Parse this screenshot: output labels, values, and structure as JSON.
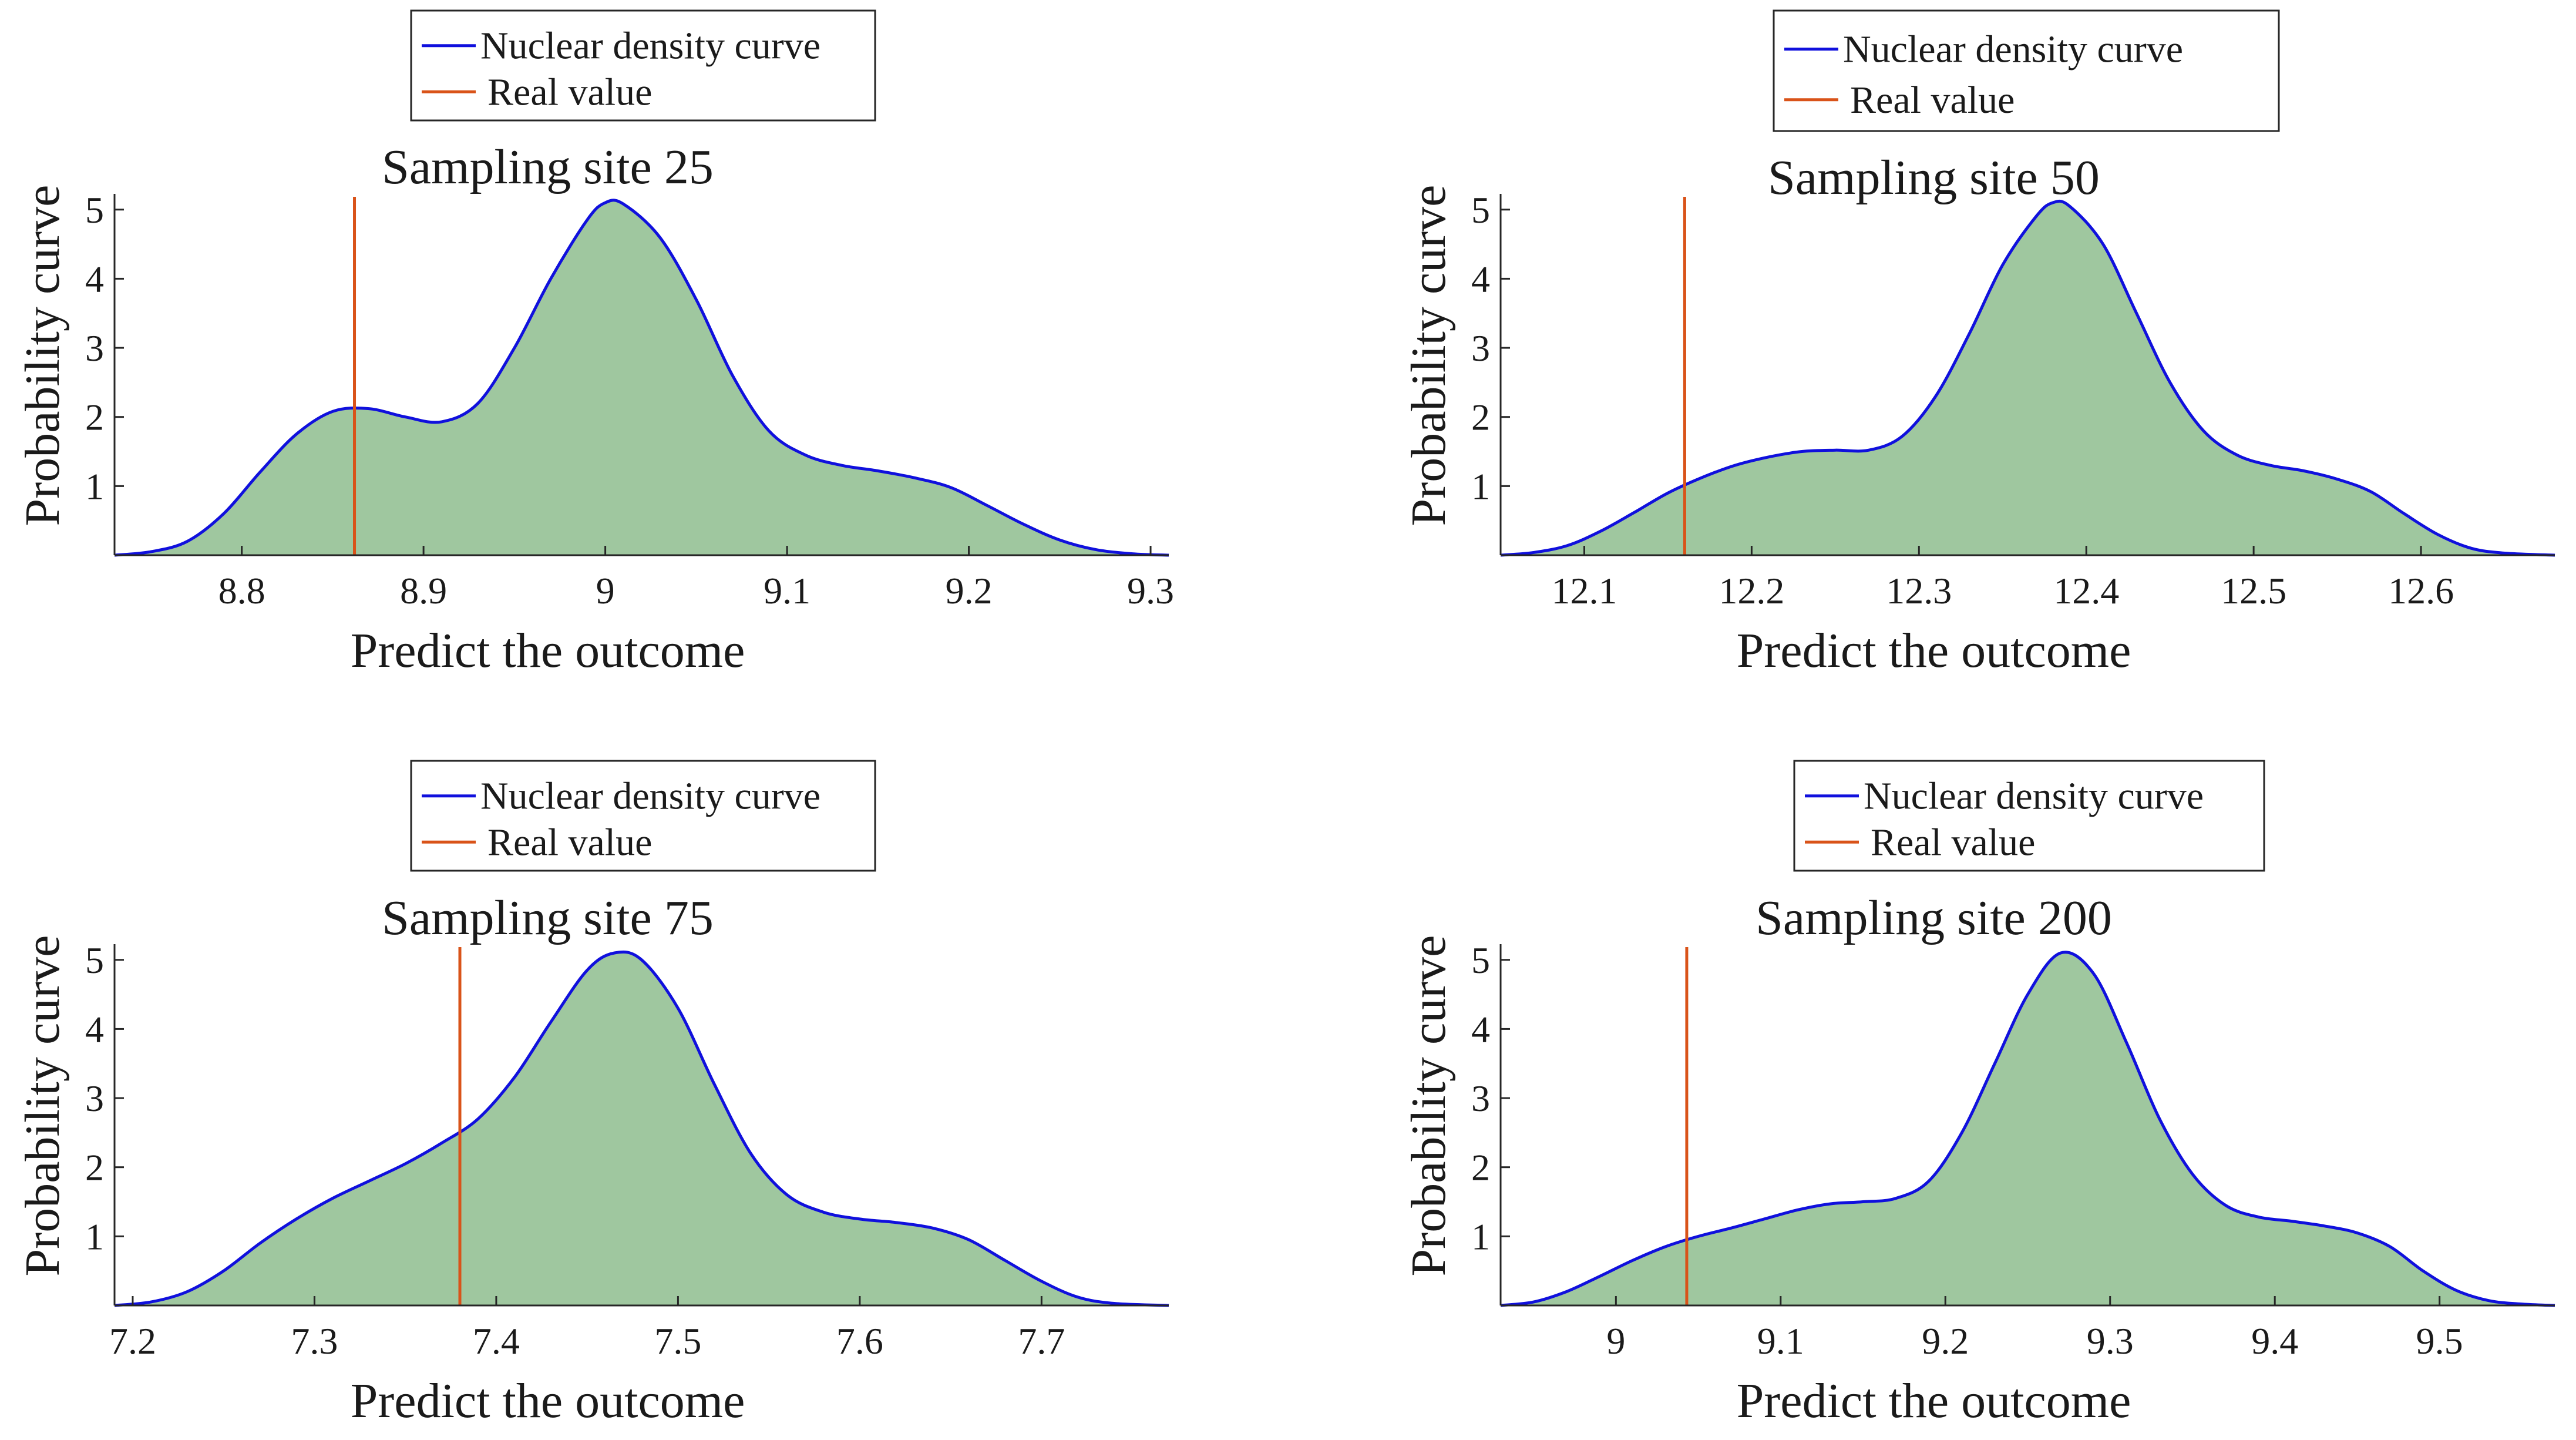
{
  "colors": {
    "density_line": "#1010dd",
    "density_fill": "#9fc79f",
    "real_value": "#d95319",
    "axis": "#262626",
    "legend_border": "#262626"
  },
  "chart_data": [
    {
      "type": "area",
      "title": "Sampling site 25",
      "xlabel": "Predict the outcome",
      "ylabel": "Probability curve",
      "xlim": [
        8.73,
        9.31
      ],
      "ylim": [
        0,
        5.1
      ],
      "xticks": [
        "8.8",
        "8.9",
        "9",
        "9.1",
        "9.2",
        "9.3"
      ],
      "yticks": [
        "1",
        "2",
        "3",
        "4",
        "5"
      ],
      "legend": [
        "Nuclear density curve",
        "Real value"
      ],
      "real_value": 8.862,
      "series": [
        {
          "name": "Nuclear density curve",
          "x": [
            8.73,
            8.75,
            8.77,
            8.79,
            8.81,
            8.83,
            8.85,
            8.87,
            8.89,
            8.91,
            8.93,
            8.95,
            8.97,
            8.99,
            9.0,
            9.01,
            9.03,
            9.05,
            9.07,
            9.09,
            9.11,
            9.13,
            9.15,
            9.17,
            9.19,
            9.21,
            9.23,
            9.25,
            9.27,
            9.29,
            9.31
          ],
          "y": [
            0.0,
            0.05,
            0.2,
            0.6,
            1.2,
            1.75,
            2.08,
            2.12,
            2.0,
            1.93,
            2.2,
            3.0,
            4.0,
            4.85,
            5.1,
            5.08,
            4.6,
            3.7,
            2.6,
            1.8,
            1.45,
            1.3,
            1.22,
            1.12,
            0.98,
            0.72,
            0.45,
            0.22,
            0.08,
            0.02,
            0.0
          ]
        }
      ]
    },
    {
      "type": "area",
      "title": "Sampling site 50",
      "xlabel": "Predict the outcome",
      "ylabel": "Probability curve",
      "xlim": [
        12.05,
        12.68
      ],
      "ylim": [
        0,
        5.1
      ],
      "xticks": [
        "12.1",
        "12.2",
        "12.3",
        "12.4",
        "12.5",
        "12.6"
      ],
      "yticks": [
        "1",
        "2",
        "3",
        "4",
        "5"
      ],
      "legend": [
        "Nuclear density curve",
        "Real value"
      ],
      "real_value": 12.16,
      "series": [
        {
          "name": "Nuclear density curve",
          "x": [
            12.05,
            12.07,
            12.09,
            12.11,
            12.13,
            12.15,
            12.17,
            12.19,
            12.21,
            12.23,
            12.25,
            12.27,
            12.29,
            12.31,
            12.33,
            12.35,
            12.37,
            12.38,
            12.39,
            12.41,
            12.43,
            12.45,
            12.47,
            12.49,
            12.51,
            12.53,
            12.55,
            12.57,
            12.59,
            12.61,
            12.63,
            12.65,
            12.68
          ],
          "y": [
            0.0,
            0.04,
            0.14,
            0.35,
            0.62,
            0.9,
            1.12,
            1.3,
            1.42,
            1.5,
            1.52,
            1.52,
            1.72,
            2.3,
            3.2,
            4.2,
            4.9,
            5.1,
            5.05,
            4.5,
            3.5,
            2.5,
            1.8,
            1.45,
            1.3,
            1.22,
            1.1,
            0.92,
            0.6,
            0.3,
            0.1,
            0.03,
            0.0
          ]
        }
      ]
    },
    {
      "type": "area",
      "title": "Sampling site 75",
      "xlabel": "Predict the outcome",
      "ylabel": "Probability curve",
      "xlim": [
        7.19,
        7.77
      ],
      "ylim": [
        0,
        5.1
      ],
      "xticks": [
        "7.2",
        "7.3",
        "7.4",
        "7.5",
        "7.6",
        "7.7"
      ],
      "yticks": [
        "1",
        "2",
        "3",
        "4",
        "5"
      ],
      "legend": [
        "Nuclear density curve",
        "Real value"
      ],
      "real_value": 7.38,
      "series": [
        {
          "name": "Nuclear density curve",
          "x": [
            7.19,
            7.21,
            7.23,
            7.25,
            7.27,
            7.29,
            7.31,
            7.33,
            7.35,
            7.37,
            7.39,
            7.41,
            7.43,
            7.45,
            7.465,
            7.48,
            7.5,
            7.52,
            7.54,
            7.56,
            7.58,
            7.6,
            7.62,
            7.64,
            7.66,
            7.68,
            7.7,
            7.72,
            7.74,
            7.77
          ],
          "y": [
            0.0,
            0.05,
            0.2,
            0.5,
            0.9,
            1.25,
            1.55,
            1.8,
            2.05,
            2.35,
            2.7,
            3.3,
            4.1,
            4.85,
            5.1,
            5.0,
            4.3,
            3.2,
            2.2,
            1.6,
            1.35,
            1.25,
            1.2,
            1.12,
            0.95,
            0.65,
            0.35,
            0.12,
            0.03,
            0.0
          ]
        }
      ]
    },
    {
      "type": "area",
      "title": "Sampling site 200",
      "xlabel": "Predict the outcome",
      "ylabel": "Probability curve",
      "xlim": [
        8.93,
        9.57
      ],
      "ylim": [
        0,
        5.1
      ],
      "xticks": [
        "9",
        "9.1",
        "9.2",
        "9.3",
        "9.4",
        "9.5"
      ],
      "yticks": [
        "1",
        "2",
        "3",
        "4",
        "5"
      ],
      "legend": [
        "Nuclear density curve",
        "Real value"
      ],
      "real_value": 9.043,
      "series": [
        {
          "name": "Nuclear density curve",
          "x": [
            8.93,
            8.95,
            8.97,
            8.99,
            9.01,
            9.03,
            9.05,
            9.07,
            9.09,
            9.11,
            9.13,
            9.15,
            9.17,
            9.19,
            9.21,
            9.23,
            9.25,
            9.27,
            9.29,
            9.31,
            9.33,
            9.35,
            9.37,
            9.39,
            9.41,
            9.43,
            9.45,
            9.47,
            9.49,
            9.51,
            9.53,
            9.55,
            9.57
          ],
          "y": [
            0.0,
            0.05,
            0.2,
            0.42,
            0.65,
            0.85,
            1.0,
            1.12,
            1.25,
            1.38,
            1.47,
            1.5,
            1.55,
            1.8,
            2.5,
            3.5,
            4.5,
            5.1,
            4.8,
            3.8,
            2.7,
            1.9,
            1.45,
            1.28,
            1.22,
            1.15,
            1.05,
            0.85,
            0.5,
            0.22,
            0.07,
            0.02,
            0.0
          ]
        }
      ]
    }
  ]
}
